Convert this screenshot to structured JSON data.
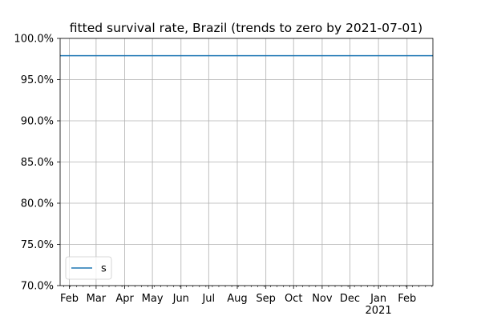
{
  "chart_data": {
    "type": "line",
    "title": "fitted survival rate, Brazil (trends to zero by 2021-07-01)",
    "xlabel": "",
    "ylabel": "",
    "xlim": [
      "2020-01-22",
      "2021-02-29"
    ],
    "ylim": [
      70.0,
      100.0
    ],
    "yticks": [
      "70.0%",
      "75.0%",
      "80.0%",
      "85.0%",
      "90.0%",
      "95.0%",
      "100.0%"
    ],
    "yticks_values": [
      70,
      75,
      80,
      85,
      90,
      95,
      100
    ],
    "xticks": [
      {
        "date": "2020-02-01",
        "label": "Feb",
        "sublabel": ""
      },
      {
        "date": "2020-03-01",
        "label": "Mar",
        "sublabel": ""
      },
      {
        "date": "2020-04-01",
        "label": "Apr",
        "sublabel": ""
      },
      {
        "date": "2020-05-01",
        "label": "May",
        "sublabel": ""
      },
      {
        "date": "2020-06-01",
        "label": "Jun",
        "sublabel": ""
      },
      {
        "date": "2020-07-01",
        "label": "Jul",
        "sublabel": ""
      },
      {
        "date": "2020-08-01",
        "label": "Aug",
        "sublabel": ""
      },
      {
        "date": "2020-09-01",
        "label": "Sep",
        "sublabel": ""
      },
      {
        "date": "2020-10-01",
        "label": "Oct",
        "sublabel": ""
      },
      {
        "date": "2020-11-01",
        "label": "Nov",
        "sublabel": ""
      },
      {
        "date": "2020-12-01",
        "label": "Dec",
        "sublabel": ""
      },
      {
        "date": "2021-01-01",
        "label": "Jan",
        "sublabel": "2021"
      },
      {
        "date": "2021-02-01",
        "label": "Feb",
        "sublabel": ""
      }
    ],
    "grid": true,
    "legend_position": "lower-left",
    "series": [
      {
        "name": "s",
        "color": "#1f77b4",
        "x": [
          "2020-01-22",
          "2021-02-29"
        ],
        "values": [
          97.9,
          97.9
        ]
      }
    ]
  }
}
